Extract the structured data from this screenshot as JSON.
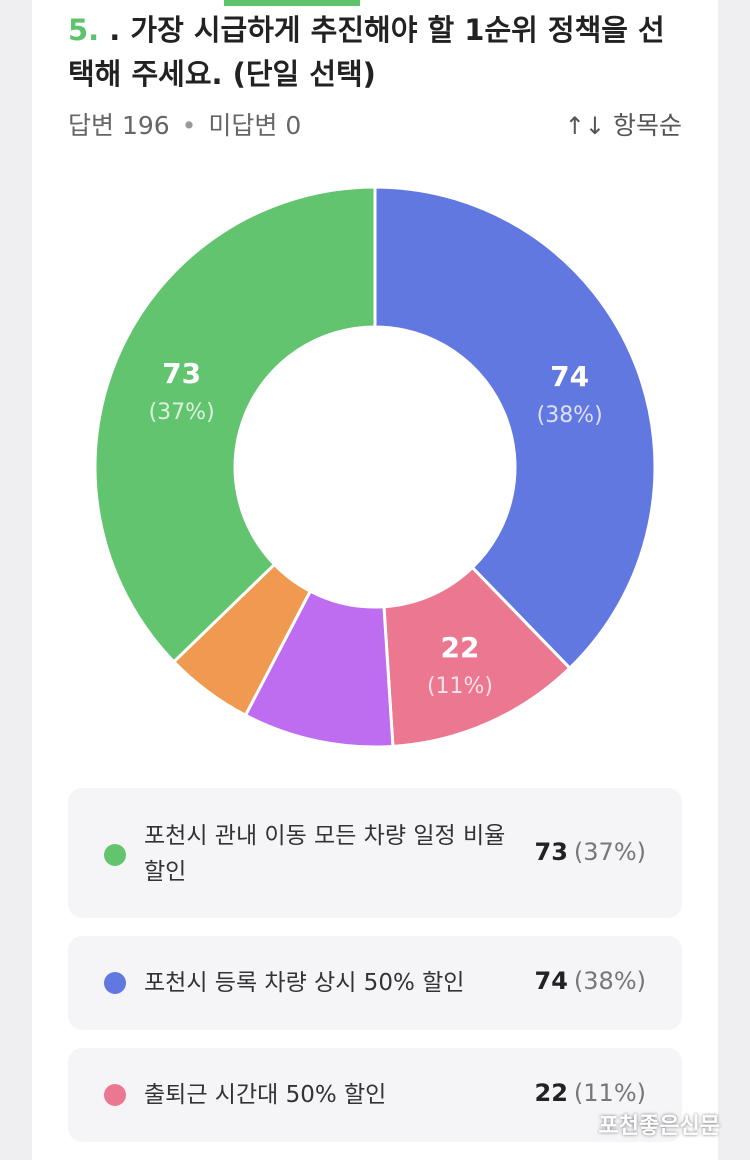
{
  "question": {
    "number": "5.",
    "text": " . 가장 시급하게 추진해야 할 1순위 정책을 선택해 주세요. (단일 선택)"
  },
  "stats": {
    "answered": "답변 196",
    "unanswered": "미답변 0",
    "separator": "•"
  },
  "sort": {
    "arrow": "↑↓",
    "label": "항목순"
  },
  "colors": {
    "green": "#62c46f",
    "blue": "#6178e0",
    "pink": "#ec7790",
    "purple": "#be6cf0",
    "orange": "#ef9a50"
  },
  "chart_data": {
    "type": "pie",
    "total": 196,
    "slices": [
      {
        "value": 74,
        "percent": 38,
        "color": "#6178e0",
        "count_label": "74",
        "pct_label": "(38%)"
      },
      {
        "value": 22,
        "percent": 11,
        "color": "#ec7790",
        "count_label": "22",
        "pct_label": "(11%)"
      },
      {
        "value": 17,
        "color": "#be6cf0"
      },
      {
        "value": 10,
        "color": "#ef9a50"
      },
      {
        "value": 73,
        "percent": 37,
        "color": "#62c46f",
        "count_label": "73",
        "pct_label": "(37%)"
      }
    ]
  },
  "legend": [
    {
      "label": "포천시 관내 이동 모든 차량 일정 비율 할인",
      "count": "73",
      "pct": "(37%)",
      "color": "#62c46f"
    },
    {
      "label": "포천시 등록 차량 상시 50% 할인",
      "count": "74",
      "pct": "(38%)",
      "color": "#6178e0"
    },
    {
      "label": "출퇴근 시간대 50% 할인",
      "count": "22",
      "pct": "(11%)",
      "color": "#ec7790"
    }
  ],
  "watermark": "포천좋은신문"
}
